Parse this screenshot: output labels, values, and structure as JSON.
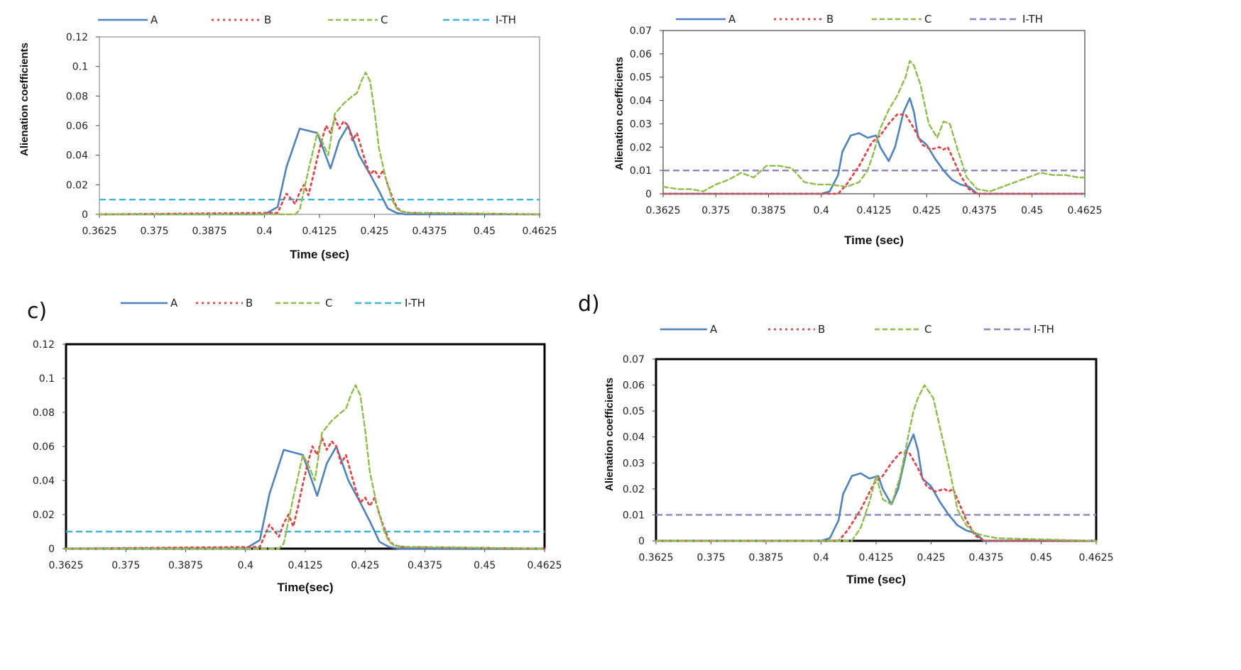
{
  "colors": {
    "A": "#4f81bd",
    "B": "#d9484a",
    "C": "#8fbc4a",
    "ITH1": "#3fb6d8",
    "ITH2": "#8e86c4"
  },
  "chart_data": [
    {
      "type": "line",
      "panel_label": "",
      "xlabel": "Time (sec)",
      "ylabel": "Alienation coefficients",
      "ylim": [
        0,
        0.12
      ],
      "yticks": [
        "0.12",
        "0.1",
        "0.08",
        "0.06",
        "0.04",
        "0.02",
        "0"
      ],
      "xlim": [
        0.3625,
        0.4625
      ],
      "xticks": [
        "0.3625",
        "0.375",
        "0.3875",
        "0.4",
        "0.4125",
        "0.425",
        "0.4375",
        "0.45",
        "0.4625"
      ],
      "legend": [
        "A",
        "B",
        "C",
        "I-TH"
      ],
      "threshold": 0.01,
      "series": [
        {
          "name": "A",
          "x": [
            0.3625,
            0.4,
            0.403,
            0.405,
            0.408,
            0.412,
            0.415,
            0.417,
            0.419,
            0.4215,
            0.424,
            0.426,
            0.428,
            0.43,
            0.432,
            0.4625
          ],
          "y": [
            0,
            0,
            0.005,
            0.032,
            0.058,
            0.055,
            0.031,
            0.05,
            0.06,
            0.04,
            0.027,
            0.016,
            0.004,
            0.001,
            0,
            0
          ]
        },
        {
          "name": "B",
          "x": [
            0.3625,
            0.403,
            0.405,
            0.407,
            0.408,
            0.409,
            0.41,
            0.411,
            0.412,
            0.413,
            0.414,
            0.415,
            0.416,
            0.417,
            0.418,
            0.419,
            0.42,
            0.421,
            0.422,
            0.423,
            0.424,
            0.425,
            0.426,
            0.427,
            0.428,
            0.429,
            0.43,
            0.431,
            0.433,
            0.4625
          ],
          "y": [
            0,
            0.001,
            0.014,
            0.007,
            0.015,
            0.02,
            0.013,
            0.025,
            0.038,
            0.05,
            0.06,
            0.055,
            0.065,
            0.058,
            0.063,
            0.06,
            0.05,
            0.055,
            0.045,
            0.035,
            0.027,
            0.03,
            0.025,
            0.03,
            0.02,
            0.012,
            0.005,
            0.002,
            0.001,
            0
          ]
        },
        {
          "name": "C",
          "x": [
            0.3625,
            0.407,
            0.408,
            0.41,
            0.412,
            0.413,
            0.4145,
            0.416,
            0.418,
            0.42,
            0.421,
            0.422,
            0.423,
            0.424,
            0.425,
            0.426,
            0.4275,
            0.429,
            0.43,
            0.431,
            0.433,
            0.4625
          ],
          "y": [
            0,
            0,
            0.003,
            0.03,
            0.055,
            0.05,
            0.04,
            0.068,
            0.075,
            0.08,
            0.082,
            0.09,
            0.096,
            0.09,
            0.07,
            0.045,
            0.025,
            0.01,
            0.004,
            0.002,
            0.001,
            0
          ]
        }
      ]
    },
    {
      "type": "line",
      "panel_label": "",
      "xlabel": "Time (sec)",
      "ylabel": "Alienation coefficients",
      "ylim": [
        0,
        0.07
      ],
      "yticks": [
        "0.07",
        "0.06",
        "0.05",
        "0.04",
        "0.03",
        "0.02",
        "0.01",
        "0"
      ],
      "xlim": [
        0.3625,
        0.4625
      ],
      "xticks": [
        "0.3625",
        "0.375",
        "0.3875",
        "0.4",
        "0.4125",
        "0.425",
        "0.4375",
        "0.45",
        "0.4625"
      ],
      "legend": [
        "A",
        "B",
        "C",
        "I-TH"
      ],
      "threshold": 0.01,
      "series": [
        {
          "name": "A",
          "x": [
            0.3625,
            0.4,
            0.402,
            0.404,
            0.405,
            0.407,
            0.409,
            0.411,
            0.413,
            0.414,
            0.416,
            0.4175,
            0.4195,
            0.421,
            0.422,
            0.423,
            0.425,
            0.427,
            0.429,
            0.431,
            0.433,
            0.435,
            0.437,
            0.4625
          ],
          "y": [
            0,
            0,
            0.001,
            0.008,
            0.018,
            0.025,
            0.026,
            0.024,
            0.025,
            0.02,
            0.014,
            0.02,
            0.035,
            0.041,
            0.035,
            0.024,
            0.021,
            0.015,
            0.01,
            0.006,
            0.004,
            0.003,
            0,
            0
          ]
        },
        {
          "name": "B",
          "x": [
            0.3625,
            0.404,
            0.406,
            0.409,
            0.412,
            0.414,
            0.416,
            0.418,
            0.42,
            0.422,
            0.424,
            0.426,
            0.428,
            0.429,
            0.43,
            0.431,
            0.433,
            0.435,
            0.437,
            0.4625
          ],
          "y": [
            0,
            0,
            0.004,
            0.012,
            0.022,
            0.025,
            0.03,
            0.034,
            0.034,
            0.028,
            0.021,
            0.019,
            0.02,
            0.019,
            0.02,
            0.016,
            0.008,
            0.002,
            0,
            0
          ]
        },
        {
          "name": "C",
          "x": [
            0.3625,
            0.366,
            0.369,
            0.372,
            0.375,
            0.378,
            0.381,
            0.384,
            0.387,
            0.39,
            0.393,
            0.396,
            0.399,
            0.402,
            0.406,
            0.409,
            0.411,
            0.4125,
            0.414,
            0.416,
            0.418,
            0.42,
            0.421,
            0.422,
            0.4235,
            0.4255,
            0.4275,
            0.429,
            0.4305,
            0.4325,
            0.4345,
            0.437,
            0.44,
            0.443,
            0.446,
            0.449,
            0.452,
            0.455,
            0.458,
            0.461,
            0.4625
          ],
          "y": [
            0.003,
            0.002,
            0.002,
            0.001,
            0.004,
            0.006,
            0.009,
            0.007,
            0.012,
            0.012,
            0.011,
            0.005,
            0.004,
            0.004,
            0.003,
            0.005,
            0.01,
            0.018,
            0.028,
            0.036,
            0.042,
            0.05,
            0.057,
            0.055,
            0.047,
            0.03,
            0.024,
            0.031,
            0.03,
            0.018,
            0.007,
            0.002,
            0.001,
            0.003,
            0.005,
            0.007,
            0.009,
            0.008,
            0.008,
            0.007,
            0.007
          ]
        }
      ]
    },
    {
      "type": "line",
      "panel_label": "c)",
      "xlabel": "Time(sec)",
      "ylabel": "",
      "ylim": [
        0,
        0.12
      ],
      "yticks": [
        "0.12",
        "0.1",
        "0.08",
        "0.06",
        "0.04",
        "0.02",
        "0"
      ],
      "xlim": [
        0.3625,
        0.4625
      ],
      "xticks": [
        "0.3625",
        "0.375",
        "0.3875",
        "0.4",
        "0.4125",
        "0.425",
        "0.4375",
        "0.45",
        "0.4625"
      ],
      "legend": [
        "A",
        "B",
        "C",
        "I-TH"
      ],
      "threshold": 0.01,
      "series": [
        {
          "name": "A",
          "x": [
            0.3625,
            0.4,
            0.403,
            0.405,
            0.408,
            0.412,
            0.415,
            0.417,
            0.419,
            0.4215,
            0.424,
            0.426,
            0.428,
            0.43,
            0.432,
            0.4625
          ],
          "y": [
            0,
            0,
            0.005,
            0.032,
            0.058,
            0.055,
            0.031,
            0.05,
            0.06,
            0.04,
            0.027,
            0.016,
            0.004,
            0.001,
            0,
            0
          ]
        },
        {
          "name": "B",
          "x": [
            0.3625,
            0.403,
            0.405,
            0.407,
            0.408,
            0.409,
            0.41,
            0.411,
            0.412,
            0.413,
            0.414,
            0.415,
            0.416,
            0.417,
            0.418,
            0.419,
            0.42,
            0.421,
            0.422,
            0.423,
            0.424,
            0.425,
            0.426,
            0.427,
            0.428,
            0.429,
            0.43,
            0.431,
            0.433,
            0.4625
          ],
          "y": [
            0,
            0.001,
            0.014,
            0.007,
            0.015,
            0.02,
            0.013,
            0.025,
            0.038,
            0.05,
            0.06,
            0.055,
            0.065,
            0.058,
            0.063,
            0.06,
            0.05,
            0.055,
            0.045,
            0.035,
            0.027,
            0.03,
            0.025,
            0.03,
            0.02,
            0.012,
            0.005,
            0.002,
            0.001,
            0
          ]
        },
        {
          "name": "C",
          "x": [
            0.3625,
            0.407,
            0.408,
            0.41,
            0.412,
            0.413,
            0.4145,
            0.416,
            0.418,
            0.42,
            0.421,
            0.422,
            0.423,
            0.424,
            0.425,
            0.426,
            0.4275,
            0.429,
            0.43,
            0.431,
            0.433,
            0.4625
          ],
          "y": [
            0,
            0,
            0.003,
            0.03,
            0.055,
            0.05,
            0.04,
            0.068,
            0.075,
            0.08,
            0.082,
            0.09,
            0.096,
            0.09,
            0.07,
            0.045,
            0.025,
            0.01,
            0.004,
            0.002,
            0.001,
            0
          ]
        }
      ]
    },
    {
      "type": "line",
      "panel_label": "d)",
      "xlabel": "Time (sec)",
      "ylabel": "Alienation coefficients",
      "ylim": [
        0,
        0.07
      ],
      "yticks": [
        "0.07",
        "0.06",
        "0.05",
        "0.04",
        "0.03",
        "0.02",
        "0.01",
        "0"
      ],
      "xlim": [
        0.3625,
        0.4625
      ],
      "xticks": [
        "0.3625",
        "0.375",
        "0.3875",
        "0.4",
        "0.4125",
        "0.425",
        "0.4375",
        "0.45",
        "0.4625"
      ],
      "legend": [
        "A",
        "B",
        "C",
        "I-TH"
      ],
      "threshold": 0.01,
      "series": [
        {
          "name": "A",
          "x": [
            0.3625,
            0.4,
            0.402,
            0.404,
            0.405,
            0.407,
            0.409,
            0.411,
            0.413,
            0.414,
            0.416,
            0.4175,
            0.4195,
            0.421,
            0.422,
            0.423,
            0.425,
            0.427,
            0.429,
            0.431,
            0.433,
            0.435,
            0.437,
            0.4625
          ],
          "y": [
            0,
            0,
            0.001,
            0.008,
            0.018,
            0.025,
            0.026,
            0.024,
            0.025,
            0.02,
            0.014,
            0.02,
            0.035,
            0.041,
            0.035,
            0.024,
            0.021,
            0.015,
            0.01,
            0.006,
            0.004,
            0.003,
            0,
            0
          ]
        },
        {
          "name": "B",
          "x": [
            0.3625,
            0.404,
            0.406,
            0.409,
            0.412,
            0.414,
            0.416,
            0.418,
            0.42,
            0.422,
            0.424,
            0.426,
            0.428,
            0.429,
            0.43,
            0.431,
            0.433,
            0.435,
            0.437,
            0.4625
          ],
          "y": [
            0,
            0,
            0.004,
            0.012,
            0.022,
            0.025,
            0.03,
            0.034,
            0.034,
            0.028,
            0.021,
            0.019,
            0.02,
            0.019,
            0.02,
            0.016,
            0.008,
            0.002,
            0,
            0
          ]
        },
        {
          "name": "C",
          "x": [
            0.3625,
            0.407,
            0.409,
            0.411,
            0.4125,
            0.414,
            0.416,
            0.418,
            0.42,
            0.421,
            0.422,
            0.4235,
            0.4255,
            0.4275,
            0.4295,
            0.431,
            0.433,
            0.435,
            0.437,
            0.44,
            0.4625
          ],
          "y": [
            0,
            0,
            0.005,
            0.015,
            0.025,
            0.016,
            0.014,
            0.025,
            0.042,
            0.05,
            0.055,
            0.06,
            0.055,
            0.04,
            0.025,
            0.012,
            0.006,
            0.003,
            0.002,
            0.001,
            0
          ]
        }
      ]
    }
  ]
}
